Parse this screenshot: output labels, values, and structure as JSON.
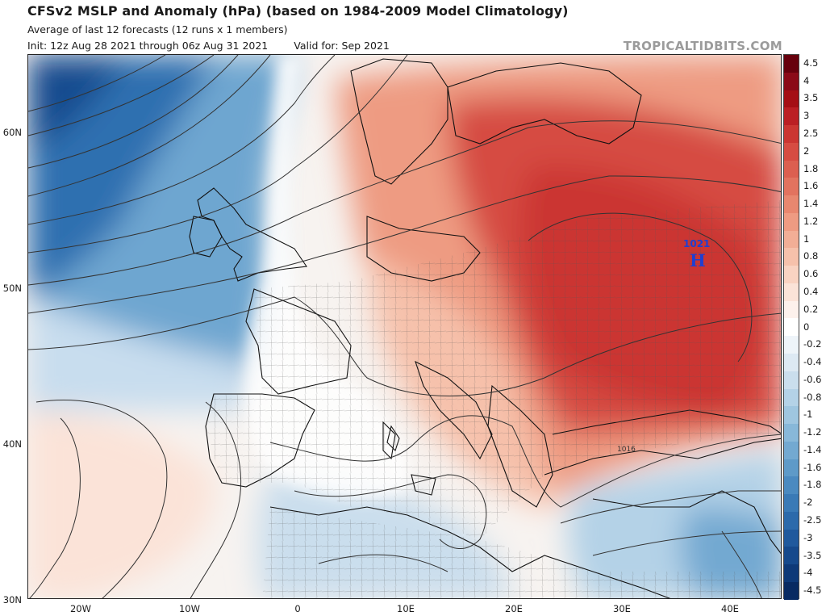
{
  "header": {
    "title": "CFSv2 MSLP and Anomaly (hPa) (based on 1984-2009 Model Climatology)",
    "subtitle": "Average of last 12 forecasts (12 runs x 1 members)",
    "init": "Init: 12z Aug 28 2021 through 06z Aug 31 2021",
    "valid": "Valid for: Sep 2021",
    "brand": "TROPICALTIDBITS.COM"
  },
  "axes": {
    "lat_labels": [
      "60N",
      "50N",
      "40N",
      "30N"
    ],
    "lon_labels": [
      "20W",
      "10W",
      "0",
      "10E",
      "20E",
      "30E",
      "40E"
    ]
  },
  "high_center": {
    "value": "1021",
    "letter": "H"
  },
  "isobar_label": "1016",
  "colorbar": {
    "labels": [
      "4.5",
      "4",
      "3.5",
      "3",
      "2.5",
      "2",
      "1.8",
      "1.6",
      "1.4",
      "1.2",
      "1",
      "0.8",
      "0.6",
      "0.4",
      "0.2",
      "0",
      "-0.2",
      "-0.4",
      "-0.6",
      "-0.8",
      "-1",
      "-1.2",
      "-1.4",
      "-1.6",
      "-1.8",
      "-2",
      "-2.5",
      "-3",
      "-3.5",
      "-4",
      "-4.5"
    ],
    "colors": [
      "#67000d",
      "#8b0a18",
      "#a50f15",
      "#bb1f24",
      "#cb3632",
      "#d64c42",
      "#dc5f50",
      "#e2735f",
      "#e8876f",
      "#ee9b82",
      "#f2ae96",
      "#f6c1ab",
      "#f9d3c2",
      "#fbe3d8",
      "#fdf1ec",
      "#ffffff",
      "#eef4f9",
      "#dde9f3",
      "#cadeed",
      "#b4d2e7",
      "#9fc6e0",
      "#88b8d9",
      "#73a9d1",
      "#5e9ac8",
      "#4b8ac0",
      "#3a7ab6",
      "#2c6aab",
      "#20599d",
      "#16498c",
      "#0e3978",
      "#082a62"
    ]
  }
}
